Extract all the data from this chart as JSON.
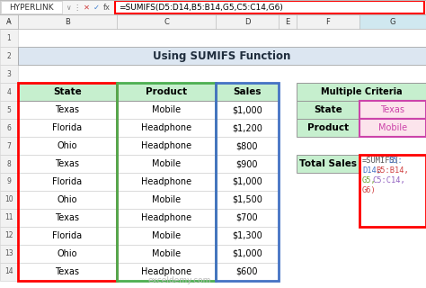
{
  "title": "Using SUMIFS Function",
  "formula_bar_text": "=SUMIFS(D5:D14,B5:B14,G5,C5:C14,G6)",
  "formula_bar_label": "HYPERLINK",
  "rows": [
    [
      "Texas",
      "Mobile",
      "$1,000"
    ],
    [
      "Florida",
      "Headphone",
      "$1,200"
    ],
    [
      "Ohio",
      "Headphone",
      "$800"
    ],
    [
      "Texas",
      "Mobile",
      "$900"
    ],
    [
      "Florida",
      "Headphone",
      "$1,000"
    ],
    [
      "Ohio",
      "Mobile",
      "$1,500"
    ],
    [
      "Texas",
      "Headphone",
      "$700"
    ],
    [
      "Florida",
      "Mobile",
      "$1,300"
    ],
    [
      "Ohio",
      "Mobile",
      "$1,000"
    ],
    [
      "Texas",
      "Headphone",
      "$600"
    ]
  ],
  "criteria_title": "Multiple Criteria",
  "criteria_rows": [
    [
      "State",
      "Texas"
    ],
    [
      "Product",
      "Mobile"
    ]
  ],
  "total_label": "Total Sales",
  "header_bg": "#c6efce",
  "title_bg": "#dce6f1",
  "excel_hdr_bg": "#f2f2f2",
  "criteria_val_bg": "#fce4ec",
  "white": "#ffffff",
  "row_alt_bg": "#ffe2e2",
  "col_b_border": "#FF0000",
  "col_c_border": "#4CAF50",
  "col_d_border": "#4472C4",
  "criteria_val_border": "#CC44AA",
  "formula_box_border": "#FF0000",
  "grid_color": "#cccccc",
  "dark_border": "#999999"
}
